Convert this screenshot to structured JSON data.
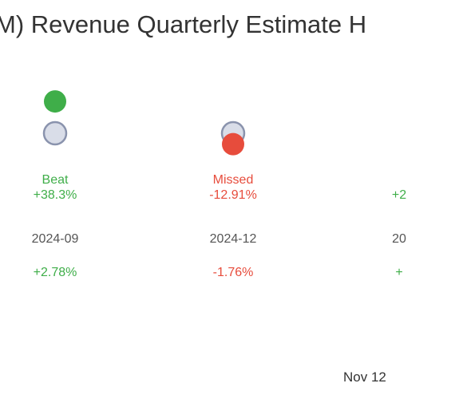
{
  "title": "M) Revenue Quarterly Estimate H",
  "footer_date": "Nov 12",
  "colors": {
    "beat": "#3fae49",
    "missed": "#e74c3c",
    "estimate_fill": "#d9dde8",
    "estimate_stroke": "#8a93ad",
    "period": "#555555"
  },
  "chart_data": {
    "type": "scatter",
    "title": "M) Revenue Quarterly Estimate H",
    "x": [
      "2024-09",
      "2024-12",
      "20"
    ],
    "series": [
      {
        "role": "actual",
        "points": [
          {
            "period": "2024-09",
            "status": "Beat",
            "surprise": "+38.3%",
            "change": "+2.78%",
            "actual_rel": 0.38,
            "estimate_rel": 0.0
          },
          {
            "period": "2024-12",
            "status": "Missed",
            "surprise": "-12.91%",
            "change": "-1.76%",
            "actual_rel": -0.13,
            "estimate_rel": 0.0
          },
          {
            "period": "20",
            "status": "",
            "surprise": "+2",
            "change": "+",
            "partial": true
          }
        ]
      }
    ],
    "grid": false,
    "legend": "none"
  }
}
